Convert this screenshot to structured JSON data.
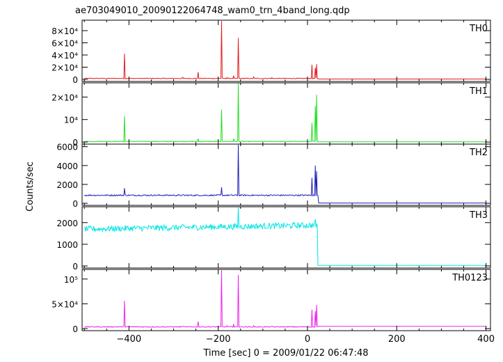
{
  "chart_data": {
    "type": "line",
    "title": "ae703049010_20090122064748_wam0_trn_4band_long.qdp",
    "xlabel": "Time [sec] 0 = 2009/01/22 06:47:48",
    "ylabel": "Counts/sec",
    "xlim": [
      -505,
      410
    ],
    "x_ticks": [
      -400,
      -200,
      0,
      200,
      400
    ],
    "x_tick_labels": [
      "−400",
      "−200",
      "0",
      "200",
      "400"
    ],
    "grid": false,
    "panels": [
      {
        "name": "TH0",
        "color": "#e41a1c",
        "ylim": [
          0,
          96000
        ],
        "y_ticks": [
          0,
          20000,
          40000,
          60000,
          80000
        ],
        "y_tick_labels": [
          "0",
          "2×10⁴",
          "4×10⁴",
          "6×10⁴",
          "8×10⁴"
        ],
        "baseline": 1500,
        "noise": 600,
        "spikes": [
          [
            -410,
            42000
          ],
          [
            -280,
            3500
          ],
          [
            -245,
            12000
          ],
          [
            -193,
            96000
          ],
          [
            -180,
            3000
          ],
          [
            -165,
            6000
          ],
          [
            -155,
            68000
          ],
          [
            -120,
            4000
          ],
          [
            -80,
            3000
          ],
          [
            10,
            24000
          ],
          [
            17,
            19000
          ],
          [
            21,
            25000
          ]
        ],
        "end_step": null
      },
      {
        "name": "TH1",
        "color": "#22dd22",
        "ylim": [
          0,
          26000
        ],
        "y_ticks": [
          0,
          10000,
          20000
        ],
        "y_tick_labels": [
          "0",
          "10⁴",
          "2×10⁴"
        ],
        "baseline": 250,
        "noise": 150,
        "spikes": [
          [
            -410,
            11500
          ],
          [
            -245,
            1500
          ],
          [
            -193,
            14500
          ],
          [
            -165,
            1500
          ],
          [
            -155,
            26000
          ],
          [
            10,
            8500
          ],
          [
            17,
            16000
          ],
          [
            21,
            21000
          ]
        ],
        "end_step": null
      },
      {
        "name": "TH2",
        "color": "#1f1fb4",
        "ylim": [
          0,
          6200
        ],
        "y_ticks": [
          0,
          2000,
          4000,
          6000
        ],
        "y_tick_labels": [
          "0",
          "2000",
          "4000",
          "6000"
        ],
        "baseline": 850,
        "noise": 70,
        "spikes": [
          [
            -410,
            1600
          ],
          [
            -193,
            1700
          ],
          [
            -155,
            6200
          ],
          [
            10,
            2700
          ],
          [
            17,
            4000
          ],
          [
            21,
            3400
          ]
        ],
        "end_step": [
          24,
          30
        ]
      },
      {
        "name": "TH3",
        "color": "#00e5e5",
        "ylim": [
          0,
          2700
        ],
        "y_ticks": [
          0,
          1000,
          2000
        ],
        "y_tick_labels": [
          "0",
          "1000",
          "2000"
        ],
        "baseline": 1700,
        "slope_to": 1880,
        "noise": 140,
        "spikes": [
          [
            -155,
            2700
          ],
          [
            18,
            2150
          ]
        ],
        "end_step": [
          22,
          25
        ]
      },
      {
        "name": "TH0123",
        "color": "#ee22ee",
        "ylim": [
          0,
          118000
        ],
        "y_ticks": [
          0,
          50000,
          100000
        ],
        "y_tick_labels": [
          "0",
          "5×10⁴",
          "10⁵"
        ],
        "baseline": 3500,
        "noise": 900,
        "spikes": [
          [
            -410,
            56000
          ],
          [
            -280,
            4500
          ],
          [
            -245,
            14000
          ],
          [
            -193,
            118000
          ],
          [
            -180,
            6000
          ],
          [
            -165,
            9000
          ],
          [
            -155,
            108000
          ],
          [
            -120,
            6000
          ],
          [
            -80,
            5000
          ],
          [
            10,
            38000
          ],
          [
            17,
            35000
          ],
          [
            21,
            48000
          ]
        ],
        "end_step": [
          24,
          4500
        ]
      }
    ]
  }
}
